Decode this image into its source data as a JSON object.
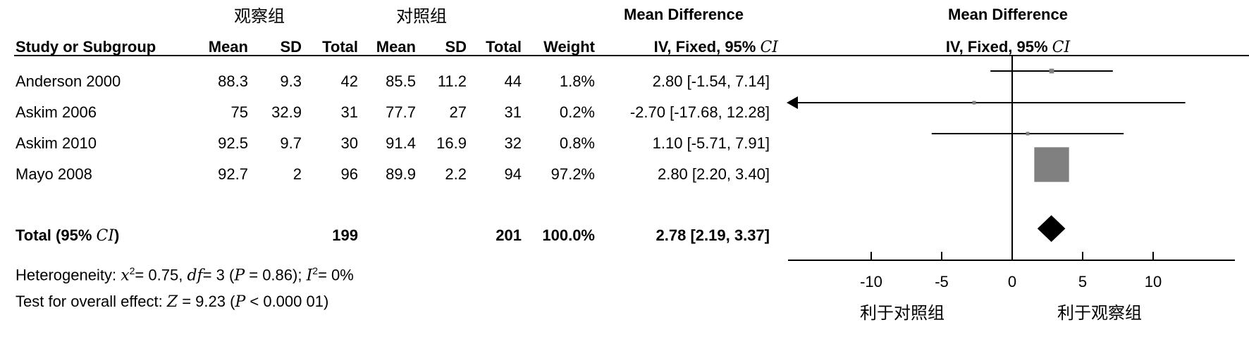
{
  "groups": {
    "experimental": "观察组",
    "control": "对照组"
  },
  "headers": {
    "md_top": "Mean Difference",
    "md_method_prefix": "IV, Fixed, 95% ",
    "ci_symbol": "CI",
    "study": "Study or Subgroup",
    "mean": "Mean",
    "sd": "SD",
    "total": "Total",
    "weight": "Weight"
  },
  "studies": [
    {
      "name": "Anderson 2000",
      "e_mean": "88.3",
      "e_sd": "9.3",
      "e_total": "42",
      "c_mean": "85.5",
      "c_sd": "11.2",
      "c_total": "44",
      "weight": "1.8%",
      "ci_text": "2.80 [-1.54, 7.14]"
    },
    {
      "name": "Askim 2006",
      "e_mean": "75",
      "e_sd": "32.9",
      "e_total": "31",
      "c_mean": "77.7",
      "c_sd": "27",
      "c_total": "31",
      "weight": "0.2%",
      "ci_text": "-2.70 [-17.68, 12.28]"
    },
    {
      "name": "Askim 2010",
      "e_mean": "92.5",
      "e_sd": "9.7",
      "e_total": "30",
      "c_mean": "91.4",
      "c_sd": "16.9",
      "c_total": "32",
      "weight": "0.8%",
      "ci_text": "1.10 [-5.71, 7.91]"
    },
    {
      "name": "Mayo 2008",
      "e_mean": "92.7",
      "e_sd": "2",
      "e_total": "96",
      "c_mean": "89.9",
      "c_sd": "2.2",
      "c_total": "94",
      "weight": "97.2%",
      "ci_text": "2.80 [2.20, 3.40]"
    }
  ],
  "total": {
    "label_prefix": "Total (95% ",
    "label_suffix": ")",
    "e_total": "199",
    "c_total": "201",
    "weight": "100.0%",
    "ci_text": "2.78 [2.19, 3.37]"
  },
  "heterogeneity": {
    "prefix": "Heterogeneity: ",
    "chi_symbol": "x",
    "chi_sup": "2",
    "chi_value": "= 0.75, ",
    "df_symbol": "df",
    "df_value": "= 3 (",
    "p_symbol": "P",
    "p_value": " = 0.86); ",
    "i_symbol": "I",
    "i_sup": "2",
    "i_value": "= 0%"
  },
  "overall_effect": {
    "prefix": "Test for overall effect: ",
    "z_symbol": "Z",
    "z_value": " = 9.23 (",
    "p_symbol": "P",
    "p_value": " < 0.000  01)"
  },
  "axis_labels": {
    "favours_control": "利于对照组",
    "favours_experimental": "利于观察组"
  },
  "chart_data": {
    "type": "forest",
    "effect_measure": "Mean Difference (IV, Fixed, 95% CI)",
    "xlim": [
      -20,
      20
    ],
    "x_ticks": [
      -10,
      -5,
      0,
      5,
      10
    ],
    "studies": [
      {
        "name": "Anderson 2000",
        "md": 2.8,
        "lower": -1.54,
        "upper": 7.14,
        "weight": 1.8
      },
      {
        "name": "Askim 2006",
        "md": -2.7,
        "lower": -17.68,
        "upper": 12.28,
        "weight": 0.2
      },
      {
        "name": "Askim 2010",
        "md": 1.1,
        "lower": -5.71,
        "upper": 7.91,
        "weight": 0.8
      },
      {
        "name": "Mayo 2008",
        "md": 2.8,
        "lower": 2.2,
        "upper": 3.4,
        "weight": 97.2
      }
    ],
    "pooled": {
      "md": 2.78,
      "lower": 2.19,
      "upper": 3.37
    },
    "colors": {
      "study_marker": "#808080",
      "line": "#000000",
      "diamond": "#000000"
    }
  }
}
